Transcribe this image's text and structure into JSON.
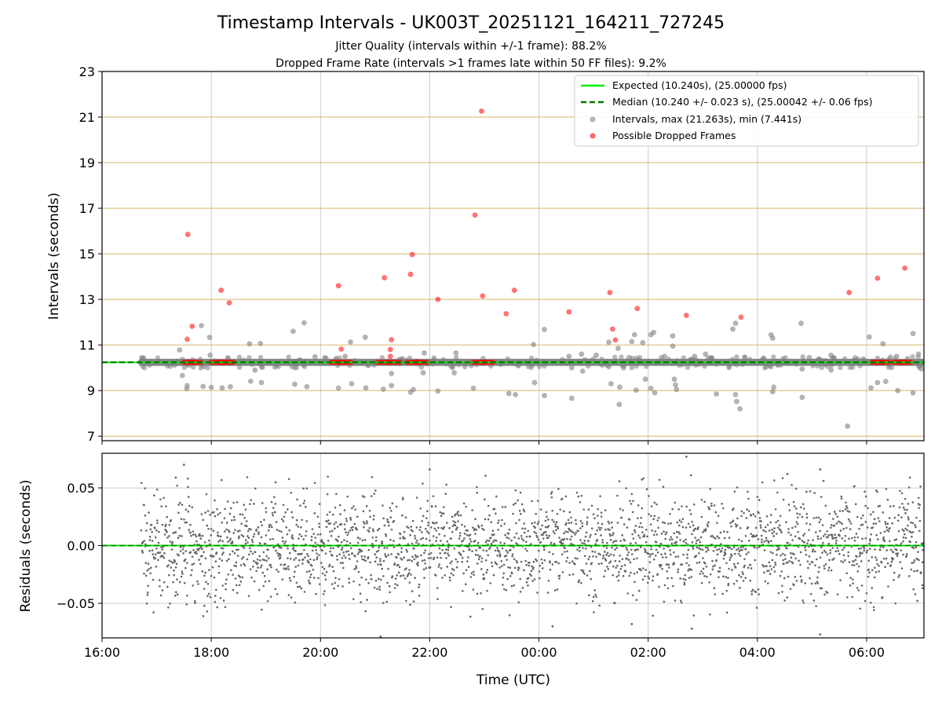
{
  "chart_data": [
    {
      "type": "scatter",
      "title": "Timestamp Intervals - UK003T_20251121_164211_727245",
      "subtitle_1": "Jitter Quality (intervals within +/-1 frame): 88.2%",
      "subtitle_2": "Dropped Frame Rate (intervals >1 frames late within 50 FF files): 9.2%",
      "xlabel": "",
      "ylabel": "Intervals (seconds)",
      "xlim_hours": [
        16.0,
        31.05
      ],
      "ylim": [
        6.8,
        23.0
      ],
      "y_ticks": [
        7,
        9,
        11,
        13,
        15,
        17,
        19,
        21,
        23
      ],
      "y_tick_labels": [
        "7",
        "9",
        "11",
        "13",
        "15",
        "17",
        "19",
        "21",
        "23"
      ],
      "x_ticks_hours": [
        16,
        18,
        20,
        22,
        24,
        26,
        28,
        30
      ],
      "grid": true,
      "legend_position": "upper-right",
      "legend": [
        {
          "label": "Expected (10.240s), (25.00000 fps)",
          "style": "line",
          "color": "#00ee00"
        },
        {
          "label": "Median (10.240 +/- 0.023 s), (25.00042 +/- 0.06 fps)",
          "style": "dashed",
          "color": "#007700"
        },
        {
          "label": "Intervals, max (21.263s), min (7.441s)",
          "style": "marker",
          "color": "#808080"
        },
        {
          "label": "Possible Dropped Frames",
          "style": "marker",
          "color": "#ff0000"
        }
      ],
      "expected_interval": 10.24,
      "median_interval": 10.24,
      "series": [
        {
          "name": "Intervals, max (21.263s), min (7.441s)",
          "color": "#808080",
          "points": [
            [
              17.42,
              10.78
            ],
            [
              17.47,
              9.66
            ],
            [
              17.55,
              9.08
            ],
            [
              17.56,
              9.22
            ],
            [
              17.82,
              11.85
            ],
            [
              17.85,
              9.18
            ],
            [
              17.97,
              11.33
            ],
            [
              17.98,
              10.55
            ],
            [
              18.0,
              9.14
            ],
            [
              18.2,
              9.12
            ],
            [
              18.35,
              9.17
            ],
            [
              18.7,
              11.05
            ],
            [
              18.72,
              9.41
            ],
            [
              18.8,
              9.9
            ],
            [
              18.9,
              11.06
            ],
            [
              18.92,
              9.35
            ],
            [
              19.5,
              11.6
            ],
            [
              19.53,
              9.28
            ],
            [
              19.7,
              11.97
            ],
            [
              19.75,
              9.17
            ],
            [
              19.9,
              10.48
            ],
            [
              20.1,
              10.42
            ],
            [
              20.33,
              9.11
            ],
            [
              20.45,
              10.5
            ],
            [
              20.55,
              11.13
            ],
            [
              20.57,
              9.3
            ],
            [
              20.82,
              11.34
            ],
            [
              20.83,
              9.12
            ],
            [
              21.15,
              9.06
            ],
            [
              21.3,
              9.22
            ],
            [
              21.3,
              9.75
            ],
            [
              21.5,
              10.4
            ],
            [
              21.65,
              8.93
            ],
            [
              21.7,
              9.05
            ],
            [
              21.88,
              9.78
            ],
            [
              21.9,
              10.65
            ],
            [
              22.15,
              8.98
            ],
            [
              22.25,
              10.35
            ],
            [
              22.45,
              9.78
            ],
            [
              22.48,
              10.65
            ],
            [
              22.8,
              9.1
            ],
            [
              23.45,
              8.87
            ],
            [
              23.57,
              8.82
            ],
            [
              23.9,
              11.02
            ],
            [
              23.92,
              9.35
            ],
            [
              24.1,
              11.68
            ],
            [
              24.1,
              8.78
            ],
            [
              24.55,
              10.5
            ],
            [
              24.6,
              8.66
            ],
            [
              24.6,
              10.0
            ],
            [
              24.78,
              10.6
            ],
            [
              24.8,
              9.85
            ],
            [
              25.05,
              10.55
            ],
            [
              25.25,
              10.1
            ],
            [
              25.28,
              11.12
            ],
            [
              25.32,
              9.3
            ],
            [
              25.45,
              10.85
            ],
            [
              25.47,
              8.39
            ],
            [
              25.48,
              9.15
            ],
            [
              25.55,
              10.0
            ],
            [
              25.65,
              10.45
            ],
            [
              25.7,
              11.15
            ],
            [
              25.75,
              11.45
            ],
            [
              25.78,
              9.02
            ],
            [
              25.9,
              11.1
            ],
            [
              25.95,
              9.5
            ],
            [
              26.05,
              11.45
            ],
            [
              26.05,
              9.1
            ],
            [
              26.1,
              11.55
            ],
            [
              26.12,
              8.9
            ],
            [
              26.3,
              10.5
            ],
            [
              26.45,
              11.4
            ],
            [
              26.45,
              10.95
            ],
            [
              26.48,
              9.5
            ],
            [
              26.5,
              9.25
            ],
            [
              26.52,
              9.05
            ],
            [
              26.85,
              10.5
            ],
            [
              27.05,
              10.6
            ],
            [
              27.25,
              8.85
            ],
            [
              27.55,
              11.7
            ],
            [
              27.6,
              11.95
            ],
            [
              27.62,
              8.52
            ],
            [
              27.68,
              8.2
            ],
            [
              27.6,
              8.82
            ],
            [
              28.25,
              11.45
            ],
            [
              28.28,
              11.3
            ],
            [
              28.3,
              9.15
            ],
            [
              28.28,
              8.95
            ],
            [
              28.8,
              11.95
            ],
            [
              28.82,
              9.95
            ],
            [
              28.82,
              8.7
            ],
            [
              28.95,
              10.45
            ],
            [
              29.25,
              10.3
            ],
            [
              29.35,
              10.55
            ],
            [
              29.35,
              9.9
            ],
            [
              29.65,
              7.44
            ],
            [
              29.8,
              10.3
            ],
            [
              30.05,
              11.35
            ],
            [
              30.08,
              9.12
            ],
            [
              30.2,
              9.35
            ],
            [
              30.3,
              11.05
            ],
            [
              30.35,
              9.4
            ],
            [
              30.55,
              10.5
            ],
            [
              30.57,
              9.0
            ],
            [
              30.75,
              10.4
            ],
            [
              30.85,
              11.5
            ],
            [
              30.85,
              8.9
            ],
            [
              30.95,
              10.6
            ],
            [
              31.0,
              9.95
            ]
          ]
        },
        {
          "name": "Possible Dropped Frames",
          "color": "#ff0000",
          "points": [
            [
              17.57,
              15.85
            ],
            [
              17.56,
              11.25
            ],
            [
              17.65,
              11.82
            ],
            [
              18.18,
              13.4
            ],
            [
              18.33,
              12.85
            ],
            [
              20.33,
              13.6
            ],
            [
              20.38,
              10.82
            ],
            [
              21.17,
              13.95
            ],
            [
              21.3,
              11.23
            ],
            [
              21.28,
              10.8
            ],
            [
              21.28,
              10.5
            ],
            [
              21.65,
              14.1
            ],
            [
              21.68,
              14.97
            ],
            [
              22.15,
              13.0
            ],
            [
              22.83,
              16.7
            ],
            [
              22.95,
              21.26
            ],
            [
              22.97,
              13.15
            ],
            [
              23.4,
              12.37
            ],
            [
              23.55,
              13.4
            ],
            [
              24.55,
              12.45
            ],
            [
              25.3,
              13.3
            ],
            [
              25.35,
              11.7
            ],
            [
              25.4,
              11.22
            ],
            [
              25.8,
              12.6
            ],
            [
              26.7,
              12.3
            ],
            [
              27.7,
              12.22
            ],
            [
              29.68,
              13.3
            ],
            [
              30.2,
              13.93
            ],
            [
              30.7,
              14.37
            ]
          ]
        }
      ]
    },
    {
      "type": "scatter",
      "title": "",
      "xlabel": "Time (UTC)",
      "ylabel": "Residuals (seconds)",
      "xlim_hours": [
        16.0,
        31.05
      ],
      "ylim": [
        -0.08,
        0.08
      ],
      "y_ticks": [
        -0.05,
        0.0,
        0.05
      ],
      "y_tick_labels": [
        "−0.05",
        "0.00",
        "0.05"
      ],
      "x_ticks_hours": [
        16,
        18,
        20,
        22,
        24,
        26,
        28,
        30
      ],
      "x_tick_labels": [
        "16:00",
        "18:00",
        "20:00",
        "22:00",
        "00:00",
        "02:00",
        "04:00",
        "06:00"
      ],
      "grid": true,
      "zero_line_color": "#00ee00",
      "series": [
        {
          "name": "",
          "color": "#666666",
          "start_hour": 16.72,
          "end_hour": 31.05,
          "sample_count": 2600,
          "spread_std": 0.023,
          "extremes": [
            [
              17.5,
              0.07
            ],
            [
              22.0,
              0.066
            ],
            [
              26.7,
              0.077
            ],
            [
              28.55,
              0.062
            ],
            [
              29.15,
              0.066
            ],
            [
              21.1,
              -0.079
            ],
            [
              24.25,
              -0.07
            ],
            [
              25.7,
              -0.068
            ],
            [
              26.8,
              -0.072
            ],
            [
              29.15,
              -0.077
            ],
            [
              30.93,
              -0.048
            ],
            [
              17.35,
              0.059
            ]
          ]
        }
      ]
    }
  ]
}
